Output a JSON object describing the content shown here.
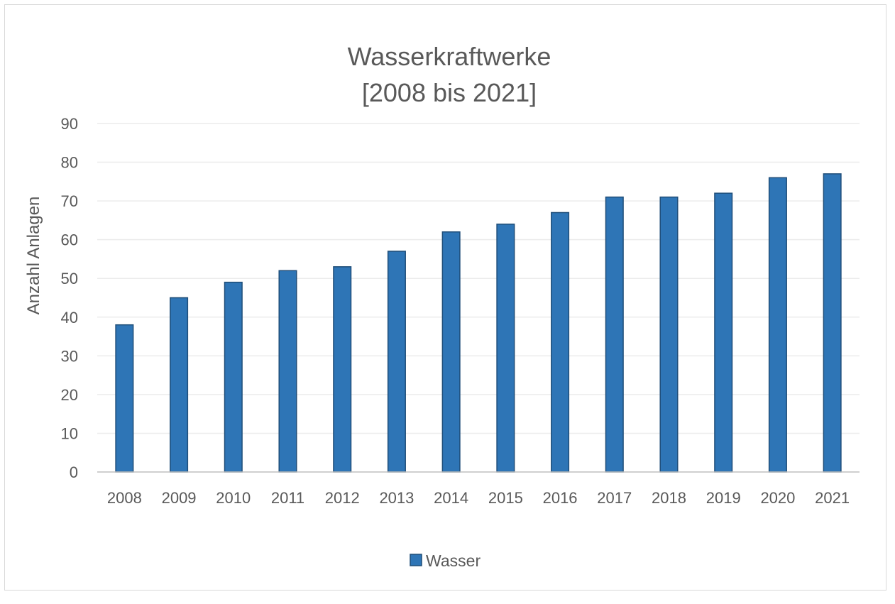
{
  "chart_data": {
    "type": "bar",
    "title": "Wasserkraftwerke",
    "subtitle": "[2008 bis 2021]",
    "xlabel": "",
    "ylabel": "Anzahl Anlagen",
    "categories": [
      "2008",
      "2009",
      "2010",
      "2011",
      "2012",
      "2013",
      "2014",
      "2015",
      "2016",
      "2017",
      "2018",
      "2019",
      "2020",
      "2021"
    ],
    "series": [
      {
        "name": "Wasser",
        "values": [
          38,
          45,
          49,
          52,
          53,
          57,
          62,
          64,
          67,
          71,
          71,
          72,
          76,
          77
        ],
        "color": "#2e75b6",
        "stroke": "#1f4e79"
      }
    ],
    "ylim": [
      0,
      90
    ],
    "yticks": [
      0,
      10,
      20,
      30,
      40,
      50,
      60,
      70,
      80,
      90
    ],
    "grid": true,
    "legend_position": "bottom-center",
    "colors": {
      "gridline": "#ececec",
      "axis": "#bfbfbf",
      "text": "#595959",
      "border": "#d9d9d9"
    }
  }
}
